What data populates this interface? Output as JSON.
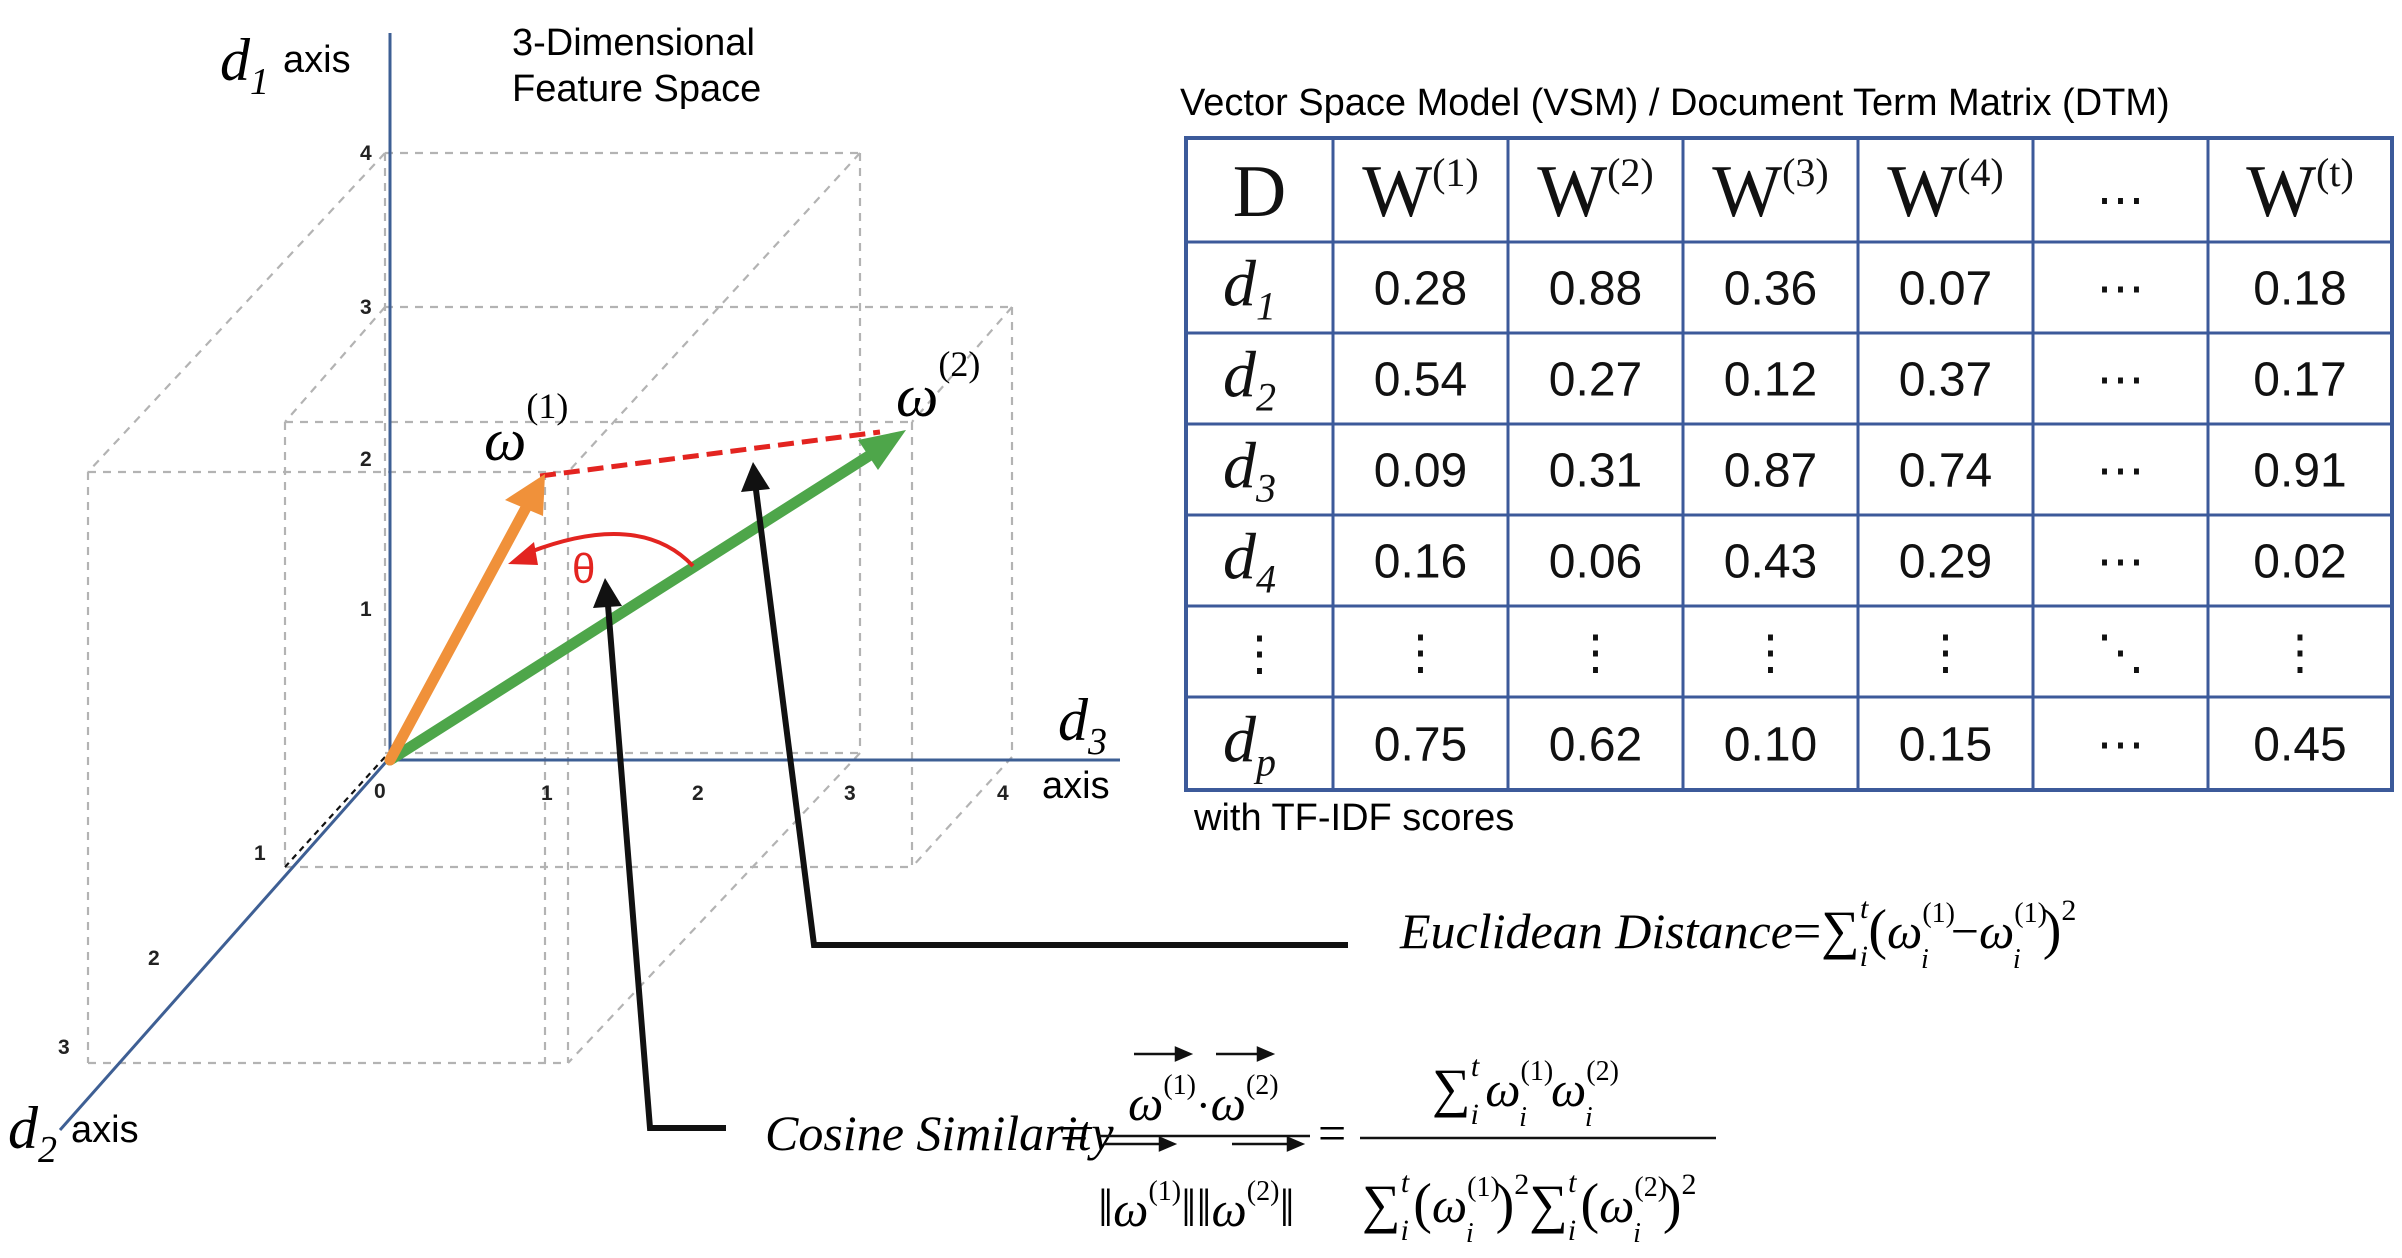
{
  "space_title_line1": "3-Dimensional",
  "space_title_line2": "Feature Space",
  "axes": {
    "d1": {
      "var": "d",
      "sub": "1",
      "word": "axis"
    },
    "d2": {
      "var": "d",
      "sub": "2",
      "word": "axis"
    },
    "d3": {
      "var": "d",
      "sub": "3",
      "word": "axis"
    },
    "origin_label": "0",
    "ticks_d1": [
      "1",
      "2",
      "3",
      "4"
    ],
    "ticks_d3": [
      "1",
      "2",
      "3",
      "4"
    ],
    "ticks_d2": [
      "1",
      "2",
      "3"
    ]
  },
  "vectors": {
    "w1": {
      "symbol": "ω",
      "sup": "(1)",
      "color": "#F0913A"
    },
    "w2": {
      "symbol": "ω",
      "sup": "(2)",
      "color": "#4EA64A"
    },
    "angle_label": "θ",
    "angle_color": "#E32420"
  },
  "table": {
    "caption": "Vector Space Model (VSM) / Document Term Matrix (DTM)",
    "footnote": "with TF-IDF scores",
    "border_color": "#3C5A9A",
    "corner": "D",
    "headers": [
      {
        "base": "W",
        "sup": "(1)"
      },
      {
        "base": "W",
        "sup": "(2)"
      },
      {
        "base": "W",
        "sup": "(3)"
      },
      {
        "base": "W",
        "sup": "(4)"
      },
      {
        "base": "⋯",
        "sup": ""
      },
      {
        "base": "W",
        "sup": "(t)"
      }
    ],
    "rows": [
      {
        "var": "d",
        "sub": "1",
        "values": [
          "0.28",
          "0.88",
          "0.36",
          "0.07",
          "⋯",
          "0.18"
        ]
      },
      {
        "var": "d",
        "sub": "2",
        "values": [
          "0.54",
          "0.27",
          "0.12",
          "0.37",
          "⋯",
          "0.17"
        ]
      },
      {
        "var": "d",
        "sub": "3",
        "values": [
          "0.09",
          "0.31",
          "0.87",
          "0.74",
          "⋯",
          "0.91"
        ]
      },
      {
        "var": "d",
        "sub": "4",
        "values": [
          "0.16",
          "0.06",
          "0.43",
          "0.29",
          "⋯",
          "0.02"
        ]
      },
      {
        "var": "⋮",
        "sub": "",
        "values": [
          "⋮",
          "⋮",
          "⋮",
          "⋮",
          "⋱",
          "⋮"
        ]
      },
      {
        "var": "d",
        "sub": "p",
        "values": [
          "0.75",
          "0.62",
          "0.10",
          "0.15",
          "⋯",
          "0.45"
        ]
      }
    ]
  },
  "formulas": {
    "euclidean_label": "Euclidean Distance",
    "cosine_label": "Cosine Similarity",
    "equals": "=",
    "sum": "∑",
    "omega": "ω",
    "sub_i": "i",
    "sup_t": "t",
    "sup_1": "(1)",
    "sup_2": "(2)",
    "minus": "−",
    "dot": "·",
    "square": "2",
    "norm_bar": "‖",
    "open_paren": "(",
    "close_paren": ")"
  }
}
